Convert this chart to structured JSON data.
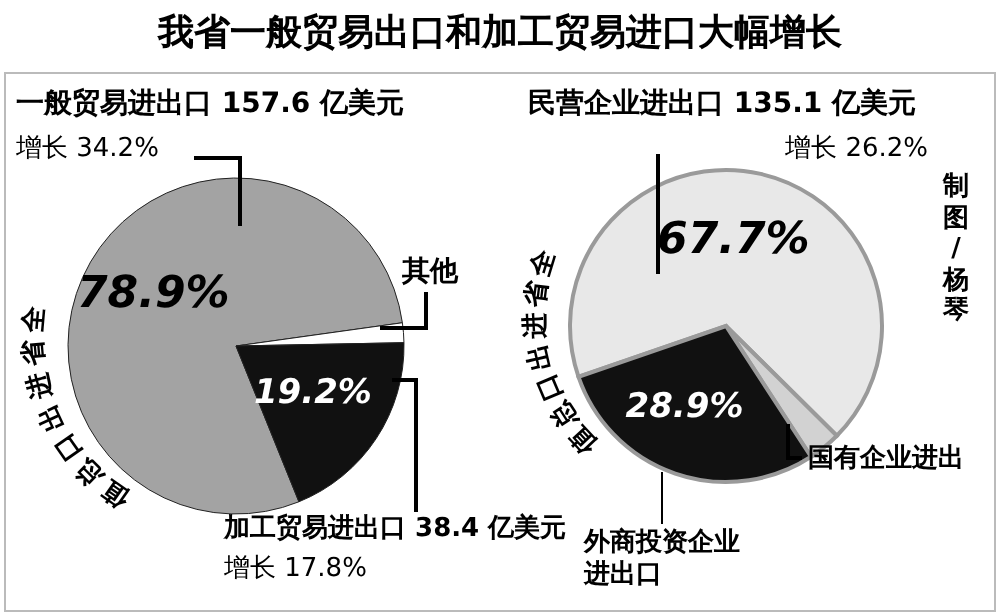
{
  "chart_data": [
    {
      "type": "pie",
      "title": "我省一般贸易出口和加工贸易进口大幅增长",
      "categories": [
        "一般贸易进出口",
        "其他",
        "加工贸易进出口"
      ],
      "values": [
        78.9,
        1.9,
        19.2
      ],
      "colors": [
        "#a3a3a3",
        "#ffffff",
        "#111111"
      ],
      "value_labels": [
        "78.9%",
        null,
        "19.2%"
      ],
      "annotations": [
        "157.6 亿美元",
        "增长 34.2%",
        "38.4 亿美元",
        "增长 17.8%",
        "全省进出口总值"
      ]
    },
    {
      "type": "pie",
      "categories": [
        "民营企业进出口",
        "国有企业进出",
        "外商投资企业进出口"
      ],
      "values": [
        67.7,
        3.4,
        28.9
      ],
      "colors": [
        "#e8e8e8",
        "#d2d2d2",
        "#111111"
      ],
      "value_labels": [
        "67.7%",
        null,
        "28.9%"
      ],
      "annotations": [
        "135.1 亿美元",
        "增长 26.2%",
        "全省进出口总值",
        "制图/杨琴"
      ]
    }
  ]
}
